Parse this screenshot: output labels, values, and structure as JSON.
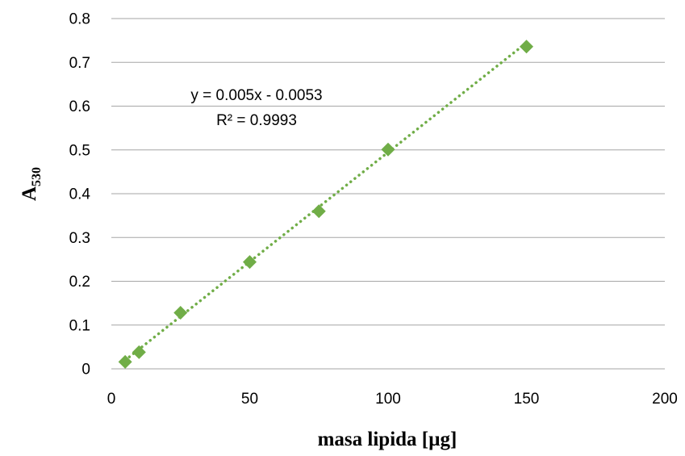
{
  "chart_data": {
    "type": "scatter",
    "title": "",
    "xlabel": "masa lipida [µg]",
    "ylabel_main": "A",
    "ylabel_sub": "530",
    "xlim": [
      0,
      200
    ],
    "ylim": [
      0,
      0.8
    ],
    "x_ticks": [
      0,
      50,
      100,
      150,
      200
    ],
    "y_ticks": [
      0,
      0.1,
      0.2,
      0.3,
      0.4,
      0.5,
      0.6,
      0.7,
      0.8
    ],
    "grid": "horizontal",
    "series": [
      {
        "x": [
          5,
          10,
          25,
          50,
          75,
          100,
          150
        ],
        "y": [
          0.016,
          0.038,
          0.128,
          0.244,
          0.36,
          0.501,
          0.736
        ],
        "color": "#70ad47",
        "marker": "diamond"
      }
    ],
    "trendline": {
      "type": "linear",
      "slope": 0.005,
      "intercept": -0.0053,
      "x_range": [
        5,
        150
      ],
      "style": "dotted",
      "color": "#70ad47",
      "equation_label": "y = 0.005x - 0.0053",
      "r2_label": "R² = 0.9993"
    }
  }
}
